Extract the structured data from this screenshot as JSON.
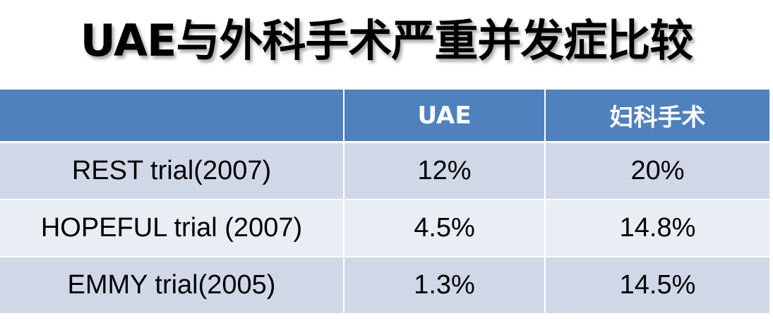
{
  "title": "UAE与外科手术严重并发症比较",
  "table": {
    "headers": [
      "",
      "UAE",
      "妇科手术"
    ],
    "rows": [
      {
        "trial": "REST trial(2007)",
        "uae": "12%",
        "surgery": "20%"
      },
      {
        "trial": "HOPEFUL trial (2007)",
        "uae": "4.5%",
        "surgery": "14.8%"
      },
      {
        "trial": "EMMY trial(2005)",
        "uae": "1.3%",
        "surgery": "14.5%"
      }
    ]
  },
  "colors": {
    "header_bg": "#4f81bd",
    "row_odd_bg": "#d0d8e8",
    "row_even_bg": "#e9edf4"
  }
}
